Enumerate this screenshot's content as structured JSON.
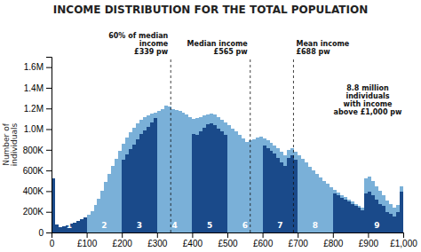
{
  "chart_data": {
    "type": "histogram",
    "title": "INCOME DISTRIBUTION FOR THE TOTAL POPULATION",
    "y_label": "Number of\nindividuals",
    "bins": [
      0,
      10,
      20,
      30,
      40,
      50,
      60,
      70,
      80,
      90,
      100,
      110,
      120,
      130,
      140,
      150,
      160,
      170,
      180,
      190,
      200,
      210,
      220,
      230,
      240,
      250,
      260,
      270,
      280,
      290,
      300,
      310,
      320,
      330,
      340,
      350,
      360,
      370,
      380,
      390,
      400,
      410,
      420,
      430,
      440,
      450,
      460,
      470,
      480,
      490,
      500,
      510,
      520,
      530,
      540,
      550,
      560,
      570,
      580,
      590,
      600,
      610,
      620,
      630,
      640,
      650,
      660,
      670,
      680,
      690,
      700,
      710,
      720,
      730,
      740,
      750,
      760,
      770,
      780,
      790,
      800,
      810,
      820,
      830,
      840,
      850,
      860,
      870,
      880,
      890,
      900,
      910,
      920,
      930,
      940,
      950,
      960,
      970,
      980,
      990,
      1000
    ],
    "series": [
      {
        "color": "#7ab0d8",
        "values": [
          520000,
          75000,
          55000,
          62000,
          72000,
          82000,
          95000,
          108000,
          125000,
          145000,
          175000,
          210000,
          265000,
          330000,
          405000,
          490000,
          565000,
          645000,
          715000,
          790000,
          855000,
          915000,
          968000,
          1015000,
          1055000,
          1090000,
          1112000,
          1130000,
          1148000,
          1162000,
          1175000,
          1188000,
          1195000,
          1198000,
          1195000,
          1188000,
          1175000,
          1158000,
          1140000,
          1118000,
          1098000,
          1105000,
          1118000,
          1132000,
          1145000,
          1152000,
          1140000,
          1118000,
          1092000,
          1065000,
          1038000,
          1008000,
          978000,
          945000,
          910000,
          872000,
          890000,
          905000,
          918000,
          925000,
          910000,
          892000,
          868000,
          842000,
          812000,
          778000,
          745000,
          795000,
          815000,
          778000,
          745000,
          712000,
          676000,
          638000,
          600000,
          565000,
          532000,
          498000,
          468000,
          438000,
          410000,
          385000,
          362000,
          340000,
          318000,
          298000,
          278000,
          258000,
          238000,
          520000,
          545000,
          498000,
          448000,
          402000,
          360000,
          308000,
          272000,
          238000,
          262000,
          445000
        ]
      },
      {
        "colors": [
          "#1a4a8a",
          "#1a4a8a",
          "#1a4a8a",
          "#1a4a8a",
          "#1a4a8a",
          "#1a4a8a",
          "#1a4a8a",
          "#1a4a8a",
          "#1a4a8a",
          "#1a4a8a",
          "#7ab0d8",
          "#7ab0d8",
          "#7ab0d8",
          "#7ab0d8",
          "#7ab0d8",
          "#7ab0d8",
          "#7ab0d8",
          "#7ab0d8",
          "#7ab0d8",
          "#7ab0d8",
          "#1a4a8a",
          "#1a4a8a",
          "#1a4a8a",
          "#1a4a8a",
          "#1a4a8a",
          "#1a4a8a",
          "#1a4a8a",
          "#1a4a8a",
          "#1a4a8a",
          "#1a4a8a",
          "#7ab0d8",
          "#7ab0d8",
          "#7ab0d8",
          "#7ab0d8",
          "#7ab0d8",
          "#7ab0d8",
          "#7ab0d8",
          "#7ab0d8",
          "#7ab0d8",
          "#7ab0d8",
          "#1a4a8a",
          "#1a4a8a",
          "#1a4a8a",
          "#1a4a8a",
          "#1a4a8a",
          "#1a4a8a",
          "#1a4a8a",
          "#1a4a8a",
          "#1a4a8a",
          "#1a4a8a",
          "#7ab0d8",
          "#7ab0d8",
          "#7ab0d8",
          "#7ab0d8",
          "#7ab0d8",
          "#7ab0d8",
          "#7ab0d8",
          "#7ab0d8",
          "#7ab0d8",
          "#7ab0d8",
          "#1a4a8a",
          "#1a4a8a",
          "#1a4a8a",
          "#1a4a8a",
          "#1a4a8a",
          "#1a4a8a",
          "#1a4a8a",
          "#1a4a8a",
          "#1a4a8a",
          "#1a4a8a",
          "#7ab0d8",
          "#7ab0d8",
          "#7ab0d8",
          "#7ab0d8",
          "#7ab0d8",
          "#7ab0d8",
          "#7ab0d8",
          "#7ab0d8",
          "#7ab0d8",
          "#7ab0d8",
          "#1a4a8a",
          "#1a4a8a",
          "#1a4a8a",
          "#1a4a8a",
          "#1a4a8a",
          "#1a4a8a",
          "#1a4a8a",
          "#1a4a8a",
          "#1a4a8a",
          "#1a4a8a",
          "#1a4a8a",
          "#1a4a8a",
          "#1a4a8a",
          "#1a4a8a",
          "#1a4a8a",
          "#1a4a8a",
          "#1a4a8a",
          "#1a4a8a",
          "#1a4a8a",
          "#1a4a8a"
        ],
        "values": [
          520000,
          75000,
          55000,
          62000,
          72000,
          82000,
          95000,
          108000,
          125000,
          145000,
          175000,
          205000,
          248000,
          298000,
          348000,
          400000,
          452000,
          518000,
          578000,
          645000,
          700000,
          755000,
          805000,
          852000,
          900000,
          950000,
          988000,
          1025000,
          1068000,
          1108000,
          1142000,
          1195000,
          1232000,
          1215000,
          1182000,
          1150000,
          1108000,
          1065000,
          1025000,
          985000,
          952000,
          945000,
          978000,
          1015000,
          1045000,
          1058000,
          1038000,
          1008000,
          978000,
          948000,
          918000,
          888000,
          858000,
          828000,
          792000,
          758000,
          802000,
          822000,
          848000,
          858000,
          840000,
          818000,
          792000,
          762000,
          722000,
          682000,
          642000,
          718000,
          748000,
          702000,
          662000,
          628000,
          592000,
          558000,
          538000,
          518000,
          492000,
          462000,
          432000,
          402000,
          378000,
          358000,
          338000,
          318000,
          298000,
          278000,
          258000,
          238000,
          218000,
          380000,
          398000,
          358000,
          318000,
          278000,
          258000,
          198000,
          178000,
          158000,
          198000,
          398000
        ]
      }
    ],
    "xlim": [
      0,
      1000
    ],
    "xticks": [
      0,
      {
        "value": 100,
        "label": "£100"
      },
      {
        "value": 200,
        "label": "£200"
      },
      {
        "value": 300,
        "label": "£300"
      },
      {
        "value": 400,
        "label": "£400"
      },
      {
        "value": 500,
        "label": "£500"
      },
      {
        "value": 600,
        "label": "£600"
      },
      {
        "value": 700,
        "label": "£700"
      },
      {
        "value": 800,
        "label": "£800"
      },
      {
        "value": 900,
        "label": "£900"
      },
      {
        "value": 1000,
        "label": "£1,000"
      }
    ],
    "ylim": [
      0,
      1700000
    ],
    "yticks": [
      0,
      {
        "value": 200000,
        "label": "200K"
      },
      {
        "value": 400000,
        "label": "400K"
      },
      {
        "value": 600000,
        "label": "600K"
      },
      {
        "value": 800000,
        "label": "800K"
      },
      {
        "value": 1000000,
        "label": "1.0M"
      },
      {
        "value": 1200000,
        "label": "1.2M"
      },
      {
        "value": 1400000,
        "label": "1.4M"
      },
      {
        "value": 1600000,
        "label": "1.6M"
      }
    ],
    "grid": false,
    "reference_lines": [
      {
        "x": 339,
        "label": "60% of median\nincome\n£339 pw"
      },
      {
        "x": 565,
        "label": "Median income\n£565 pw"
      },
      {
        "x": 688,
        "label": "Mean income\n£688 pw"
      }
    ],
    "note": "8.8 million\nindividuals\nwith income\nabove £1,000 pw",
    "decile_labels": [
      {
        "label": "1",
        "x": 50
      },
      {
        "label": "2",
        "x": 150
      },
      {
        "label": "3",
        "x": 250
      },
      {
        "label": "4",
        "x": 350
      },
      {
        "label": "5",
        "x": 450
      },
      {
        "label": "6",
        "x": 550
      },
      {
        "label": "7",
        "x": 650
      },
      {
        "label": "8",
        "x": 750
      },
      {
        "label": "9",
        "x": 925
      }
    ]
  }
}
